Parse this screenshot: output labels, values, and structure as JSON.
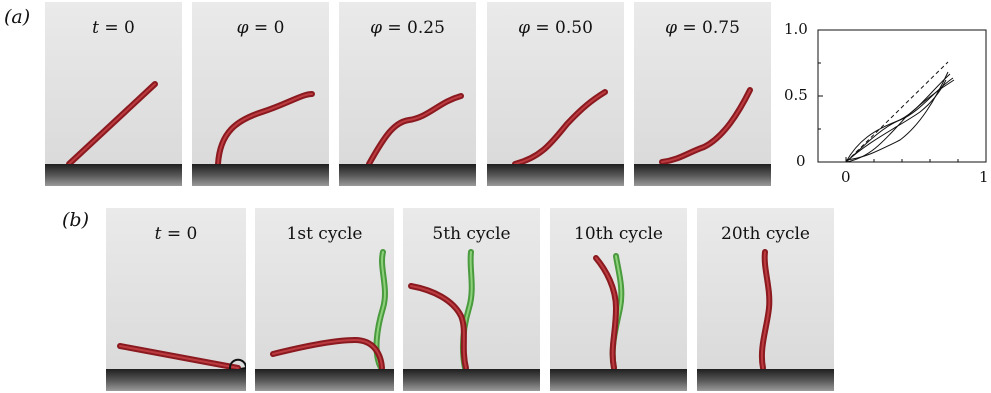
{
  "panel_a": {
    "label": "(a)",
    "frames": [
      {
        "caption_var": "t",
        "caption_val": " = 0"
      },
      {
        "caption_var": "φ",
        "caption_val": " = 0"
      },
      {
        "caption_var": "φ",
        "caption_val": " = 0.25"
      },
      {
        "caption_var": "φ",
        "caption_val": " = 0.50"
      },
      {
        "caption_var": "φ",
        "caption_val": " = 0.75"
      }
    ],
    "plot": {
      "y_ticks": [
        "1.0",
        "0.5",
        "0"
      ],
      "x_ticks": [
        "0",
        "1"
      ]
    }
  },
  "panel_b": {
    "label": "(b)",
    "frames": [
      {
        "caption_var": "t",
        "caption_val": " = 0"
      },
      {
        "caption_var": "",
        "caption_val": "1st cycle"
      },
      {
        "caption_var": "",
        "caption_val": "5th cycle"
      },
      {
        "caption_var": "",
        "caption_val": "10th cycle"
      },
      {
        "caption_var": "",
        "caption_val": "20th cycle"
      }
    ]
  },
  "colors": {
    "filament": "#b3252a",
    "filament_highlight": "#e06a6a",
    "target": "#6cc45c",
    "background": "#dcdcdc",
    "floor": "#2a2a2a"
  }
}
